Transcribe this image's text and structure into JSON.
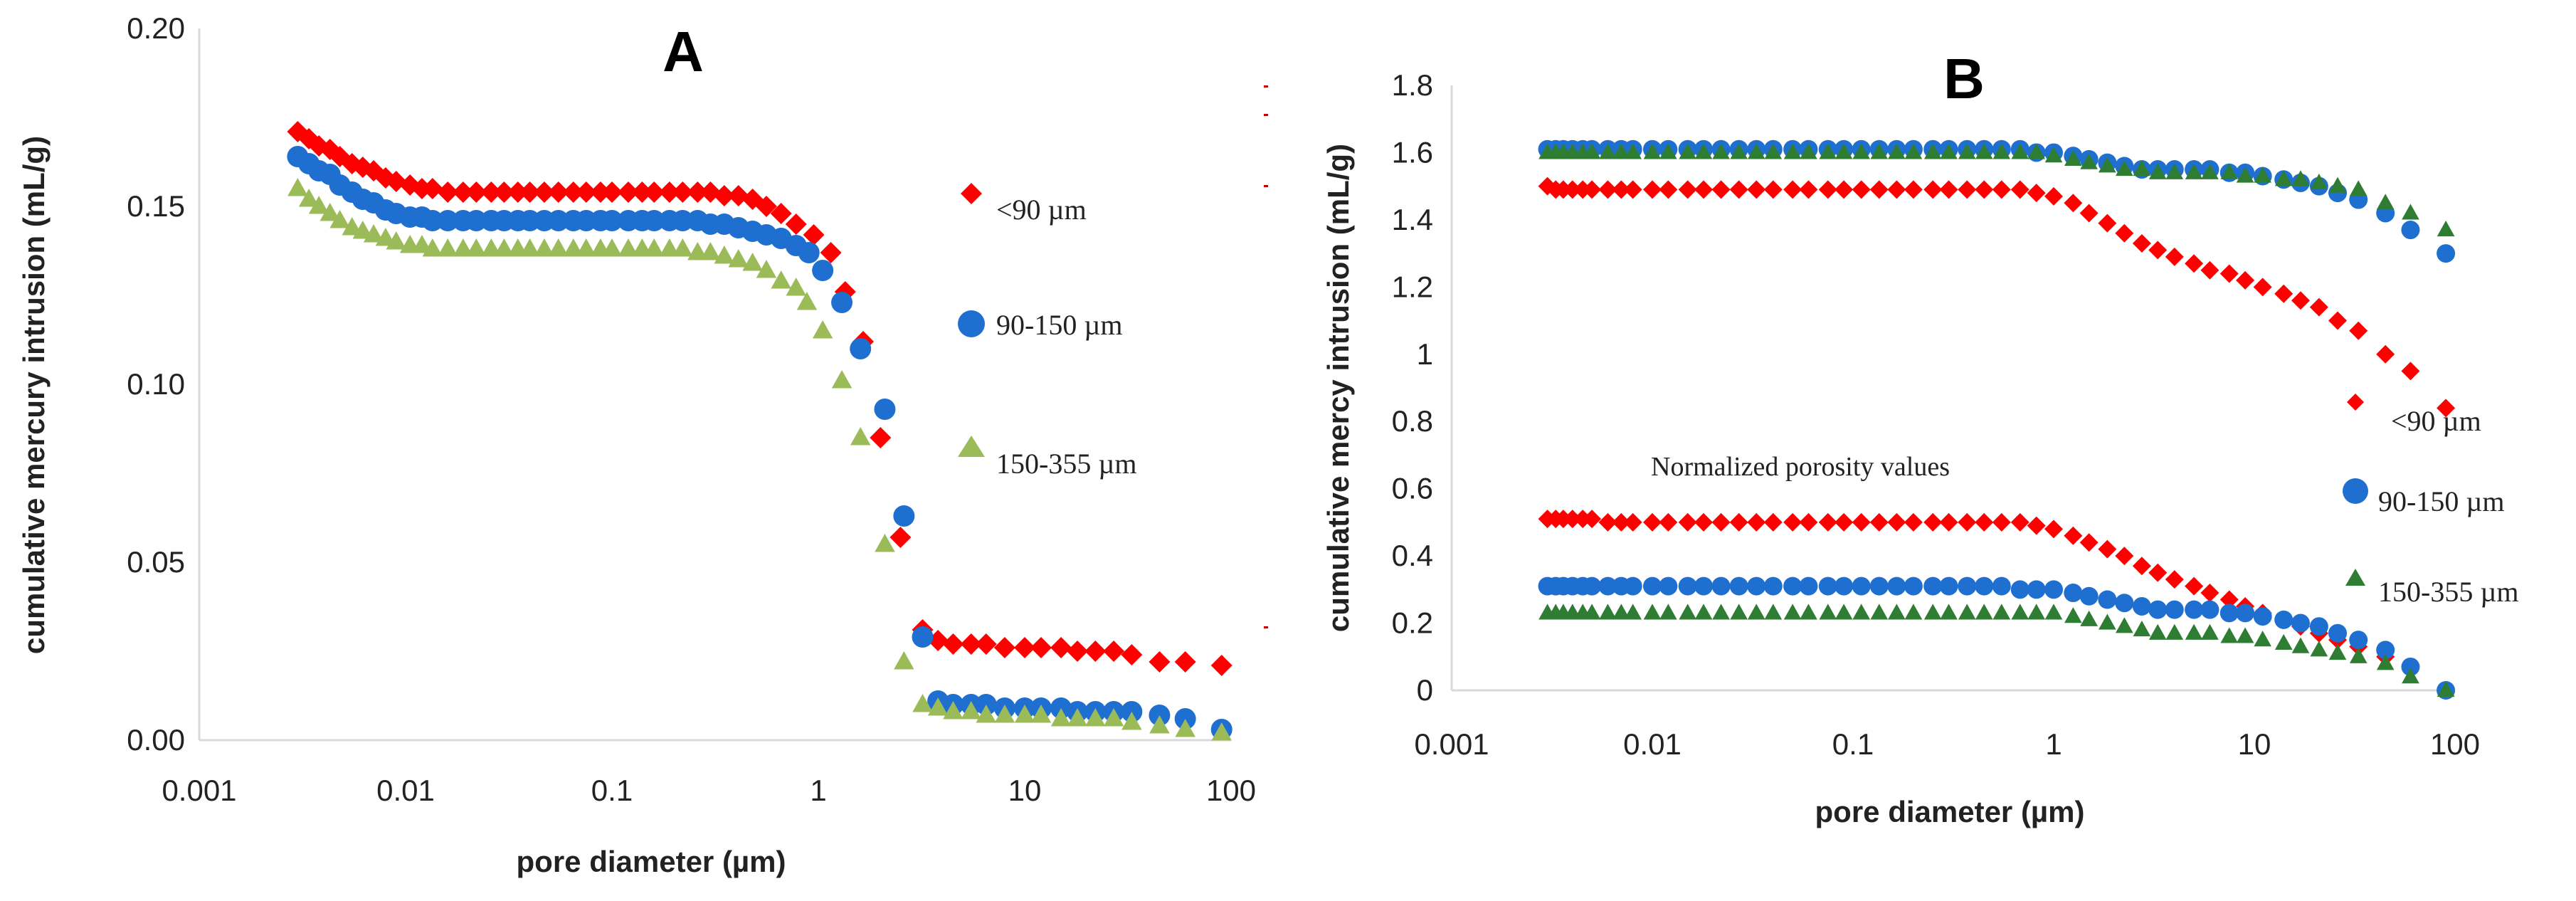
{
  "chart_data": [
    {
      "type": "scatter",
      "panel": "A",
      "title": "A",
      "xlabel": "pore diameter (µm)",
      "ylabel": "cumulative mercury intrusion (mL/g)",
      "xscale": "log",
      "xlim": [
        0.001,
        100
      ],
      "ylim": [
        0,
        0.2
      ],
      "xticks": [
        0.001,
        0.01,
        0.1,
        1,
        10,
        100
      ],
      "xtick_labels": [
        "0.001",
        "0.01",
        "0.1",
        "1",
        "10",
        "100"
      ],
      "yticks": [
        0,
        0.05,
        0.1,
        0.15,
        0.2
      ],
      "ytick_labels": [
        "0.00",
        "0.05",
        "0.10",
        "0.15",
        "0.20"
      ],
      "legend_position": "right",
      "series": [
        {
          "name": "<90 µm",
          "marker": "diamond",
          "color": "#ff0000",
          "x": [
            0.003,
            0.0034,
            0.0038,
            0.0043,
            0.0048,
            0.0055,
            0.0062,
            0.007,
            0.008,
            0.009,
            0.0105,
            0.012,
            0.0135,
            0.016,
            0.019,
            0.022,
            0.026,
            0.03,
            0.035,
            0.04,
            0.047,
            0.055,
            0.065,
            0.075,
            0.088,
            0.1,
            0.12,
            0.14,
            0.16,
            0.19,
            0.22,
            0.26,
            0.3,
            0.35,
            0.41,
            0.48,
            0.56,
            0.66,
            0.78,
            0.95,
            1.15,
            1.35,
            1.65,
            2.0,
            2.5,
            3.2,
            3.8,
            4.5,
            5.5,
            6.5,
            8,
            10,
            12,
            15,
            18,
            22,
            27,
            33,
            45,
            60,
            90
          ],
          "y": [
            0.171,
            0.169,
            0.167,
            0.166,
            0.164,
            0.162,
            0.161,
            0.16,
            0.158,
            0.157,
            0.156,
            0.155,
            0.155,
            0.154,
            0.154,
            0.154,
            0.154,
            0.154,
            0.154,
            0.154,
            0.154,
            0.154,
            0.154,
            0.154,
            0.154,
            0.154,
            0.154,
            0.154,
            0.154,
            0.154,
            0.154,
            0.154,
            0.154,
            0.153,
            0.153,
            0.152,
            0.15,
            0.148,
            0.145,
            0.142,
            0.137,
            0.126,
            0.112,
            0.085,
            0.057,
            0.031,
            0.028,
            0.027,
            0.027,
            0.027,
            0.026,
            0.026,
            0.026,
            0.026,
            0.025,
            0.025,
            0.025,
            0.024,
            0.022,
            0.022,
            0.021
          ]
        },
        {
          "name": "90-150 µm",
          "marker": "circle",
          "color": "#1f6fd1",
          "x": [
            0.003,
            0.0034,
            0.0038,
            0.0043,
            0.0048,
            0.0055,
            0.0062,
            0.007,
            0.008,
            0.009,
            0.0105,
            0.012,
            0.0135,
            0.016,
            0.019,
            0.022,
            0.026,
            0.03,
            0.035,
            0.04,
            0.047,
            0.055,
            0.065,
            0.075,
            0.088,
            0.1,
            0.12,
            0.14,
            0.16,
            0.19,
            0.22,
            0.26,
            0.3,
            0.35,
            0.41,
            0.48,
            0.56,
            0.66,
            0.78,
            0.9,
            1.05,
            1.3,
            1.6,
            2.1,
            2.6,
            3.2,
            3.8,
            4.5,
            5.5,
            6.5,
            8,
            10,
            12,
            15,
            18,
            22,
            27,
            33,
            45,
            60,
            90
          ],
          "y": [
            0.164,
            0.162,
            0.16,
            0.159,
            0.156,
            0.154,
            0.152,
            0.151,
            0.149,
            0.148,
            0.147,
            0.147,
            0.146,
            0.146,
            0.146,
            0.146,
            0.146,
            0.146,
            0.146,
            0.146,
            0.146,
            0.146,
            0.146,
            0.146,
            0.146,
            0.146,
            0.146,
            0.146,
            0.146,
            0.146,
            0.146,
            0.146,
            0.145,
            0.145,
            0.144,
            0.143,
            0.142,
            0.141,
            0.139,
            0.137,
            0.132,
            0.123,
            0.11,
            0.093,
            0.063,
            0.029,
            0.011,
            0.01,
            0.01,
            0.01,
            0.009,
            0.009,
            0.009,
            0.009,
            0.008,
            0.008,
            0.008,
            0.008,
            0.007,
            0.006,
            0.003
          ]
        },
        {
          "name": "150-355 µm",
          "marker": "triangle",
          "color": "#9bbb59",
          "x": [
            0.003,
            0.0034,
            0.0038,
            0.0043,
            0.0048,
            0.0055,
            0.0062,
            0.007,
            0.008,
            0.009,
            0.0105,
            0.012,
            0.0135,
            0.016,
            0.019,
            0.022,
            0.026,
            0.03,
            0.035,
            0.04,
            0.047,
            0.055,
            0.065,
            0.075,
            0.088,
            0.1,
            0.12,
            0.14,
            0.16,
            0.19,
            0.22,
            0.26,
            0.3,
            0.35,
            0.41,
            0.48,
            0.56,
            0.66,
            0.78,
            0.88,
            1.05,
            1.3,
            1.6,
            2.1,
            2.6,
            3.2,
            3.8,
            4.5,
            5.5,
            6.5,
            8,
            10,
            12,
            15,
            18,
            22,
            27,
            33,
            45,
            60,
            90
          ],
          "y": [
            0.155,
            0.152,
            0.15,
            0.148,
            0.146,
            0.144,
            0.143,
            0.142,
            0.141,
            0.14,
            0.139,
            0.139,
            0.138,
            0.138,
            0.138,
            0.138,
            0.138,
            0.138,
            0.138,
            0.138,
            0.138,
            0.138,
            0.138,
            0.138,
            0.138,
            0.138,
            0.138,
            0.138,
            0.138,
            0.138,
            0.138,
            0.137,
            0.137,
            0.136,
            0.135,
            0.134,
            0.132,
            0.129,
            0.127,
            0.123,
            0.115,
            0.101,
            0.085,
            0.055,
            0.022,
            0.01,
            0.009,
            0.008,
            0.008,
            0.007,
            0.007,
            0.007,
            0.007,
            0.006,
            0.006,
            0.006,
            0.006,
            0.005,
            0.004,
            0.003,
            0.002
          ]
        }
      ]
    },
    {
      "type": "scatter",
      "panel": "B",
      "title": "B",
      "xlabel": "pore diameter (µm)",
      "ylabel": "cumulative mercy intrusion (mL/g)",
      "annotation": "Normalized porosity values",
      "xscale": "log",
      "xlim": [
        0.001,
        100
      ],
      "ylim": [
        0,
        1.8
      ],
      "xticks": [
        0.001,
        0.01,
        0.1,
        1,
        10,
        100
      ],
      "xtick_labels": [
        "0.001",
        "0.01",
        "0.1",
        "1",
        "10",
        "100"
      ],
      "yticks": [
        0,
        0.2,
        0.4,
        0.6,
        0.8,
        1,
        1.2,
        1.4,
        1.6,
        1.8
      ],
      "ytick_labels": [
        "0",
        "0.2",
        "0.4",
        "0.6",
        "0.8",
        "1",
        "1.2",
        "1.4",
        "1.6",
        "1.8"
      ],
      "legend_position": "right",
      "series": [
        {
          "name": "<90 µm",
          "marker": "diamond",
          "color": "#ff0000",
          "x": [
            0.003,
            0.0033,
            0.0036,
            0.004,
            0.0045,
            0.005,
            0.006,
            0.007,
            0.008,
            0.01,
            0.012,
            0.015,
            0.018,
            0.022,
            0.027,
            0.033,
            0.04,
            0.05,
            0.06,
            0.075,
            0.09,
            0.11,
            0.135,
            0.165,
            0.2,
            0.25,
            0.3,
            0.37,
            0.45,
            0.55,
            0.68,
            0.82,
            1.0,
            1.25,
            1.5,
            1.85,
            2.25,
            2.75,
            3.3,
            4.0,
            5.0,
            6.0,
            7.5,
            9.0,
            11,
            14,
            17,
            21,
            26,
            33,
            45,
            60,
            90
          ],
          "y": [
            1.5,
            1.49,
            1.49,
            1.49,
            1.49,
            1.49,
            1.49,
            1.49,
            1.49,
            1.49,
            1.49,
            1.49,
            1.49,
            1.49,
            1.49,
            1.49,
            1.49,
            1.49,
            1.49,
            1.49,
            1.49,
            1.49,
            1.49,
            1.49,
            1.49,
            1.49,
            1.49,
            1.49,
            1.49,
            1.49,
            1.49,
            1.48,
            1.47,
            1.45,
            1.42,
            1.39,
            1.36,
            1.33,
            1.31,
            1.29,
            1.27,
            1.25,
            1.24,
            1.22,
            1.2,
            1.18,
            1.16,
            1.14,
            1.1,
            1.07,
            1.0,
            0.95,
            0.84
          ],
          "y_norm": [
            0.51,
            0.51,
            0.51,
            0.51,
            0.51,
            0.51,
            0.5,
            0.5,
            0.5,
            0.5,
            0.5,
            0.5,
            0.5,
            0.5,
            0.5,
            0.5,
            0.5,
            0.5,
            0.5,
            0.5,
            0.5,
            0.5,
            0.5,
            0.5,
            0.5,
            0.5,
            0.5,
            0.5,
            0.5,
            0.5,
            0.5,
            0.49,
            0.48,
            0.46,
            0.44,
            0.42,
            0.4,
            0.37,
            0.35,
            0.33,
            0.31,
            0.29,
            0.27,
            0.25,
            0.23,
            0.21,
            0.19,
            0.17,
            0.15,
            0.13,
            0.1,
            0.07,
            0.0
          ]
        },
        {
          "name": "90-150 µm",
          "marker": "circle",
          "color": "#1f6fd1",
          "x": [
            0.003,
            0.0033,
            0.0036,
            0.004,
            0.0045,
            0.005,
            0.006,
            0.007,
            0.008,
            0.01,
            0.012,
            0.015,
            0.018,
            0.022,
            0.027,
            0.033,
            0.04,
            0.05,
            0.06,
            0.075,
            0.09,
            0.11,
            0.135,
            0.165,
            0.2,
            0.25,
            0.3,
            0.37,
            0.45,
            0.55,
            0.68,
            0.82,
            1.0,
            1.25,
            1.5,
            1.85,
            2.25,
            2.75,
            3.3,
            4.0,
            5.0,
            6.0,
            7.5,
            9.0,
            11,
            14,
            17,
            21,
            26,
            33,
            45,
            60,
            90
          ],
          "y": [
            1.61,
            1.61,
            1.61,
            1.61,
            1.61,
            1.61,
            1.61,
            1.61,
            1.61,
            1.61,
            1.61,
            1.61,
            1.61,
            1.61,
            1.61,
            1.61,
            1.61,
            1.61,
            1.61,
            1.61,
            1.61,
            1.61,
            1.61,
            1.61,
            1.61,
            1.61,
            1.61,
            1.61,
            1.61,
            1.61,
            1.61,
            1.6,
            1.6,
            1.59,
            1.58,
            1.57,
            1.56,
            1.55,
            1.55,
            1.55,
            1.55,
            1.55,
            1.54,
            1.54,
            1.53,
            1.52,
            1.51,
            1.5,
            1.48,
            1.46,
            1.42,
            1.37,
            1.3
          ],
          "y_norm": [
            0.31,
            0.31,
            0.31,
            0.31,
            0.31,
            0.31,
            0.31,
            0.31,
            0.31,
            0.31,
            0.31,
            0.31,
            0.31,
            0.31,
            0.31,
            0.31,
            0.31,
            0.31,
            0.31,
            0.31,
            0.31,
            0.31,
            0.31,
            0.31,
            0.31,
            0.31,
            0.31,
            0.31,
            0.31,
            0.31,
            0.3,
            0.3,
            0.3,
            0.29,
            0.28,
            0.27,
            0.26,
            0.25,
            0.24,
            0.24,
            0.24,
            0.24,
            0.23,
            0.23,
            0.22,
            0.21,
            0.2,
            0.19,
            0.17,
            0.15,
            0.12,
            0.07,
            0.0
          ]
        },
        {
          "name": "150-355 µm",
          "marker": "triangle",
          "color": "#2e7d32",
          "x": [
            0.003,
            0.0033,
            0.0036,
            0.004,
            0.0045,
            0.005,
            0.006,
            0.007,
            0.008,
            0.01,
            0.012,
            0.015,
            0.018,
            0.022,
            0.027,
            0.033,
            0.04,
            0.05,
            0.06,
            0.075,
            0.09,
            0.11,
            0.135,
            0.165,
            0.2,
            0.25,
            0.3,
            0.37,
            0.45,
            0.55,
            0.68,
            0.82,
            1.0,
            1.25,
            1.5,
            1.85,
            2.25,
            2.75,
            3.3,
            4.0,
            5.0,
            6.0,
            7.5,
            9.0,
            11,
            14,
            17,
            21,
            26,
            33,
            45,
            60,
            90
          ],
          "y": [
            1.6,
            1.6,
            1.6,
            1.6,
            1.6,
            1.6,
            1.6,
            1.6,
            1.6,
            1.6,
            1.6,
            1.6,
            1.6,
            1.6,
            1.6,
            1.6,
            1.6,
            1.6,
            1.6,
            1.6,
            1.6,
            1.6,
            1.6,
            1.6,
            1.6,
            1.6,
            1.6,
            1.6,
            1.6,
            1.6,
            1.6,
            1.6,
            1.59,
            1.58,
            1.57,
            1.56,
            1.55,
            1.55,
            1.54,
            1.54,
            1.54,
            1.54,
            1.54,
            1.53,
            1.53,
            1.52,
            1.52,
            1.51,
            1.5,
            1.49,
            1.45,
            1.42,
            1.37
          ],
          "y_norm": [
            0.23,
            0.23,
            0.23,
            0.23,
            0.23,
            0.23,
            0.23,
            0.23,
            0.23,
            0.23,
            0.23,
            0.23,
            0.23,
            0.23,
            0.23,
            0.23,
            0.23,
            0.23,
            0.23,
            0.23,
            0.23,
            0.23,
            0.23,
            0.23,
            0.23,
            0.23,
            0.23,
            0.23,
            0.23,
            0.23,
            0.23,
            0.23,
            0.23,
            0.22,
            0.21,
            0.2,
            0.19,
            0.18,
            0.17,
            0.17,
            0.17,
            0.17,
            0.16,
            0.16,
            0.15,
            0.14,
            0.13,
            0.12,
            0.11,
            0.1,
            0.08,
            0.04,
            0.0
          ]
        }
      ]
    }
  ]
}
